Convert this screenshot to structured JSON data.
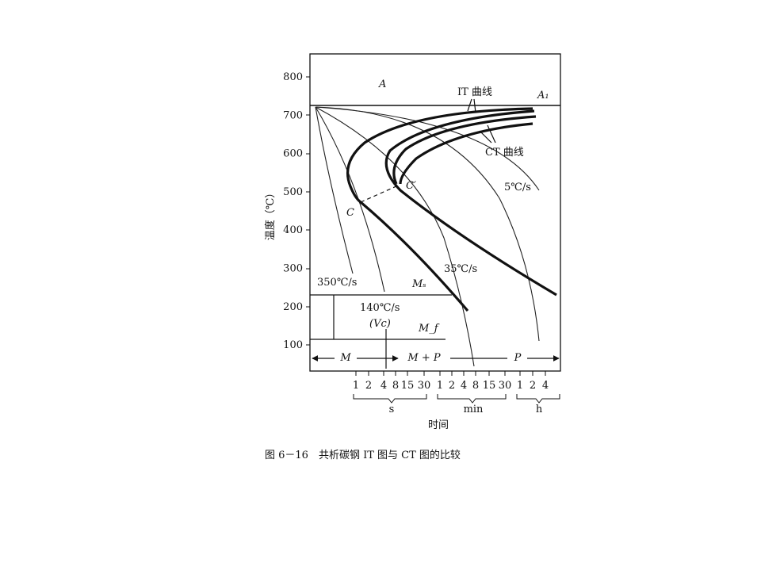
{
  "y_axis": {
    "label": "温度（℃）",
    "ticks": [
      "800",
      "700",
      "600",
      "500",
      "400",
      "300",
      "200",
      "100"
    ]
  },
  "x_axis": {
    "label": "时间",
    "ticks": [
      "1",
      "2",
      "4",
      "8",
      "15",
      "30",
      "1",
      "2",
      "4",
      "8",
      "15",
      "30",
      "1",
      "2",
      "4"
    ],
    "units": [
      "s",
      "min",
      "h"
    ]
  },
  "labels": {
    "A": "A",
    "A1": "A₁",
    "it_curve": "IT 曲线",
    "ct_curve": "CT 曲线",
    "rate_5": "5℃/s",
    "c_prime": "C′",
    "c": "C",
    "rate_35": "35℃/s",
    "rate_350": "350℃/s",
    "ms": "Mₛ",
    "rate_140": "140℃/s",
    "vc": "(Vc)",
    "mf": "M_f"
  },
  "regions": [
    "M",
    "M + P",
    "P"
  ],
  "caption": "图 6－16　共析碳钢 IT 图与 CT 图的比较"
}
